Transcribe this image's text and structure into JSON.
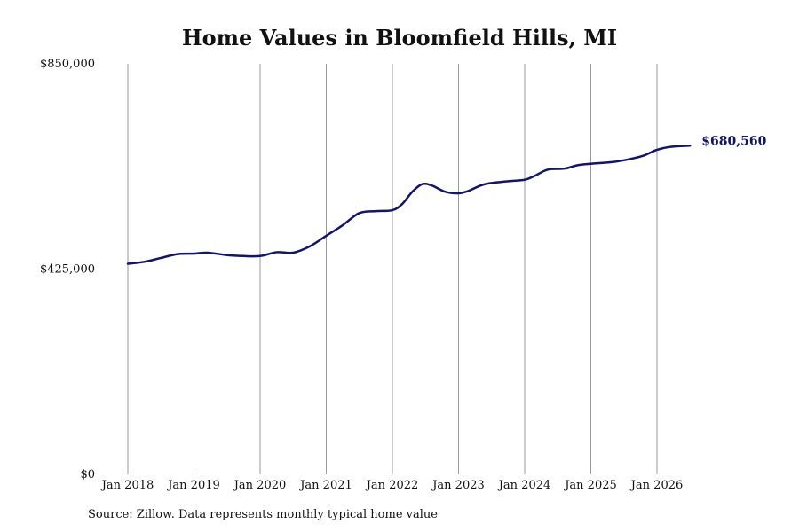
{
  "chart_data": {
    "type": "line",
    "title": "Home Values in Bloomfield Hills, MI",
    "xlabel": "",
    "ylabel": "",
    "ylim": [
      0,
      850000
    ],
    "y_ticks": [
      {
        "value": 0,
        "label": "$0"
      },
      {
        "value": 425000,
        "label": "$425,000"
      },
      {
        "value": 850000,
        "label": "$850,000"
      }
    ],
    "x_ticks": [
      {
        "value": 2018,
        "label": "Jan 2018"
      },
      {
        "value": 2019,
        "label": "Jan 2019"
      },
      {
        "value": 2020,
        "label": "Jan 2020"
      },
      {
        "value": 2021,
        "label": "Jan 2021"
      },
      {
        "value": 2022,
        "label": "Jan 2022"
      },
      {
        "value": 2023,
        "label": "Jan 2023"
      },
      {
        "value": 2024,
        "label": "Jan 2024"
      },
      {
        "value": 2025,
        "label": "Jan 2025"
      },
      {
        "value": 2026,
        "label": "Jan 2026"
      }
    ],
    "vertical_grid": true,
    "horizontal_grid": false,
    "line_color": "#14146b",
    "grid_color": "#9a9a9a",
    "series": [
      {
        "x": [
          2018.0,
          2018.25,
          2018.5,
          2018.75,
          2019.0,
          2019.2,
          2019.5,
          2019.75,
          2020.0,
          2020.25,
          2020.5,
          2020.75,
          2021.0,
          2021.25,
          2021.5,
          2021.75,
          2022.0,
          2022.15,
          2022.3,
          2022.45,
          2022.6,
          2022.8,
          2023.0,
          2023.15,
          2023.4,
          2023.75,
          2024.0,
          2024.15,
          2024.35,
          2024.6,
          2024.8,
          2025.0,
          2025.35,
          2025.6,
          2025.8,
          2026.0,
          2026.2,
          2026.5
        ],
        "values": [
          436000,
          440000,
          448000,
          456000,
          457000,
          459000,
          454000,
          452000,
          452000,
          460000,
          459000,
          472000,
          494000,
          516000,
          541000,
          545000,
          547000,
          560000,
          585000,
          601000,
          598000,
          585000,
          582000,
          587000,
          601000,
          607000,
          610000,
          618000,
          631000,
          633000,
          640000,
          643000,
          647000,
          653000,
          660000,
          672000,
          678000,
          680560
        ]
      }
    ],
    "end_label": "$680,560"
  },
  "source_note": "Source: Zillow. Data represents monthly typical home value"
}
